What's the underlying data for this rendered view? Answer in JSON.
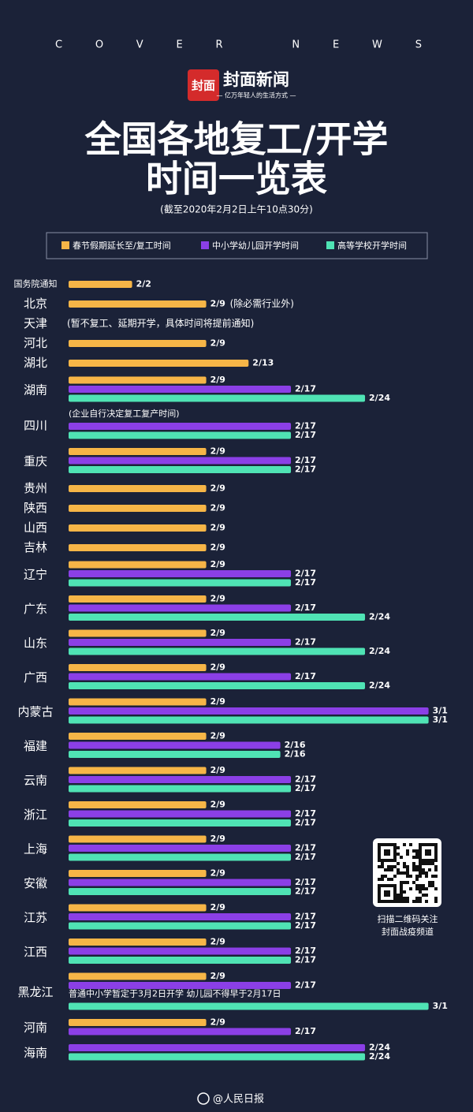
{
  "header": {
    "masthead": "COVER NEWS",
    "logo": "封面",
    "brand": "封面新闻",
    "tagline": "— 亿万年轻人的生活方式 —"
  },
  "chart_data": {
    "type": "bar",
    "title": [
      "全国各地复工/开学",
      "时间一览表"
    ],
    "subtitle": "(截至2020年2月2日上午10点30分)",
    "categories": [
      "国务院通知",
      "北京",
      "天津",
      "河北",
      "湖北",
      "湖南",
      "四川",
      "重庆",
      "贵州",
      "陕西",
      "山西",
      "吉林",
      "辽宁",
      "广东",
      "山东",
      "广西",
      "内蒙古",
      "福建",
      "云南",
      "浙江",
      "上海",
      "安徽",
      "江苏",
      "江西",
      "黑龙江",
      "河南",
      "海南"
    ],
    "series": [
      {
        "name": "春节假期延长至/复工时间",
        "color": "#f6b547",
        "values": [
          "2/2",
          "2/9",
          null,
          "2/9",
          "2/13",
          "2/9",
          null,
          "2/9",
          "2/9",
          "2/9",
          "2/9",
          "2/9",
          "2/9",
          "2/9",
          "2/9",
          "2/9",
          "2/9",
          "2/9",
          "2/9",
          "2/9",
          "2/9",
          "2/9",
          "2/9",
          "2/9",
          "2/9",
          "2/9",
          null
        ]
      },
      {
        "name": "中小学幼儿园开学时间",
        "color": "#8b3fe6",
        "values": [
          null,
          null,
          null,
          null,
          null,
          "2/17",
          "2/17",
          "2/17",
          null,
          null,
          null,
          null,
          "2/17",
          "2/17",
          "2/17",
          "2/17",
          "3/1",
          "2/16",
          "2/17",
          "2/17",
          "2/17",
          "2/17",
          "2/17",
          "2/17",
          "2/17",
          "2/17",
          "2/24"
        ]
      },
      {
        "name": "高等学校开学时间",
        "color": "#4fe3b4",
        "values": [
          null,
          null,
          null,
          null,
          null,
          "2/24",
          "2/17",
          "2/17",
          null,
          null,
          null,
          null,
          "2/17",
          "2/24",
          "2/24",
          "2/24",
          "3/1",
          "2/16",
          "2/17",
          "2/17",
          "2/17",
          "2/17",
          "2/17",
          "2/17",
          "3/1",
          null,
          "2/24"
        ]
      }
    ],
    "notes": [
      null,
      "(除必需行业外)",
      "(暂不复工、延期开学，具体时间将提前通知)",
      null,
      null,
      null,
      "(企业自行决定复工复产时间)",
      null,
      null,
      null,
      null,
      null,
      null,
      null,
      null,
      null,
      null,
      null,
      null,
      null,
      null,
      null,
      null,
      null,
      "普通中小学暂定于3月2日开学 幼儿园不得早于2月17日",
      null,
      null
    ]
  },
  "qr_caption": [
    "扫描二维码关注",
    "封面战疫频道"
  ],
  "footer": "@人民日报"
}
